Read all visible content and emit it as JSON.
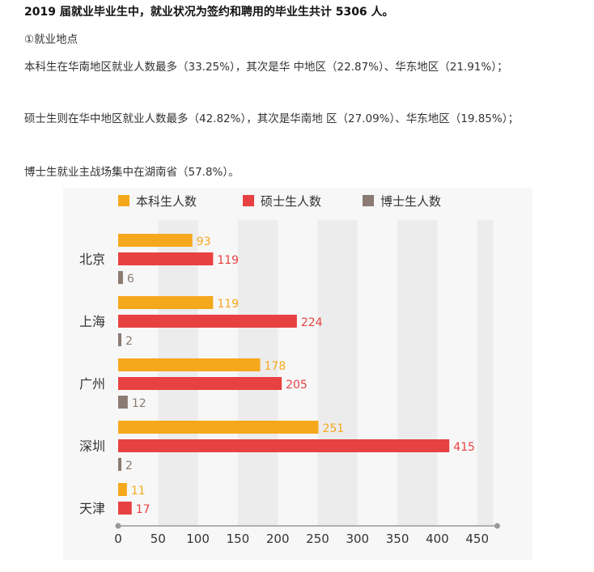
{
  "article": {
    "heading": "2019 届就业毕业生中，就业状况为签约和聘用的毕业生共计 5306 人。",
    "section_label": "①就业地点",
    "undergrad_text": "本科生在华南地区就业人数最多（33.25%），其次是华 中地区（22.87%）、华东地区（21.91%）；",
    "master_text": "硕士生则在华中地区就业人数最多（42.82%），其次是华南地 区（27.09%）、华东地区（19.85%）；",
    "phd_text": "博士生就业主战场集中在湖南省（57.8%）。"
  },
  "chart_data": {
    "type": "bar",
    "orientation": "horizontal",
    "categories": [
      "北京",
      "上海",
      "广州",
      "深圳",
      "天津"
    ],
    "series": [
      {
        "name": "本科生人数",
        "color": "#f5a81c",
        "values": [
          93,
          119,
          178,
          251,
          11
        ]
      },
      {
        "name": "硕士生人数",
        "color": "#e84142",
        "values": [
          119,
          224,
          205,
          415,
          17
        ]
      },
      {
        "name": "博士生人数",
        "color": "#8b7b72",
        "values": [
          6,
          2,
          12,
          2,
          null
        ]
      }
    ],
    "xlim": [
      0,
      470
    ],
    "xticks": [
      0,
      50,
      100,
      150,
      200,
      250,
      300,
      350,
      400,
      450
    ],
    "legend_position": "top",
    "grid": "alternating vertical bands"
  }
}
